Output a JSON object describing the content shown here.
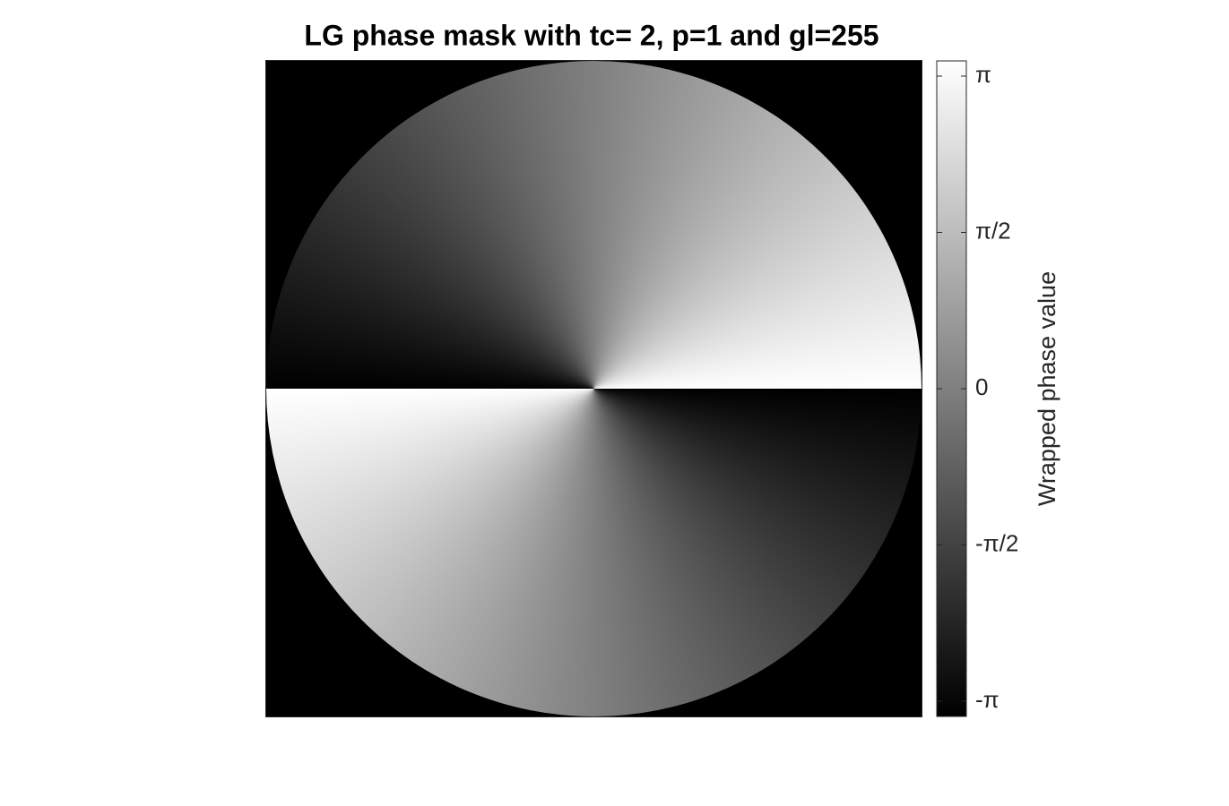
{
  "chart_data": {
    "type": "image",
    "title": "LG phase mask with tc= 2, p=1 and gl=255",
    "colorbar": {
      "label": "Wrapped phase value",
      "clim": [
        -3.2946,
        3.2946
      ],
      "ticks": [
        {
          "value": -3.1416,
          "label": "-π"
        },
        {
          "value": -1.5708,
          "label": "-π/2"
        },
        0,
        {
          "value": 1.5708,
          "label": "π/2"
        },
        {
          "value": 3.1416,
          "label": "π"
        }
      ],
      "colors": [
        "#000000",
        "#ffffff"
      ]
    }
  }
}
